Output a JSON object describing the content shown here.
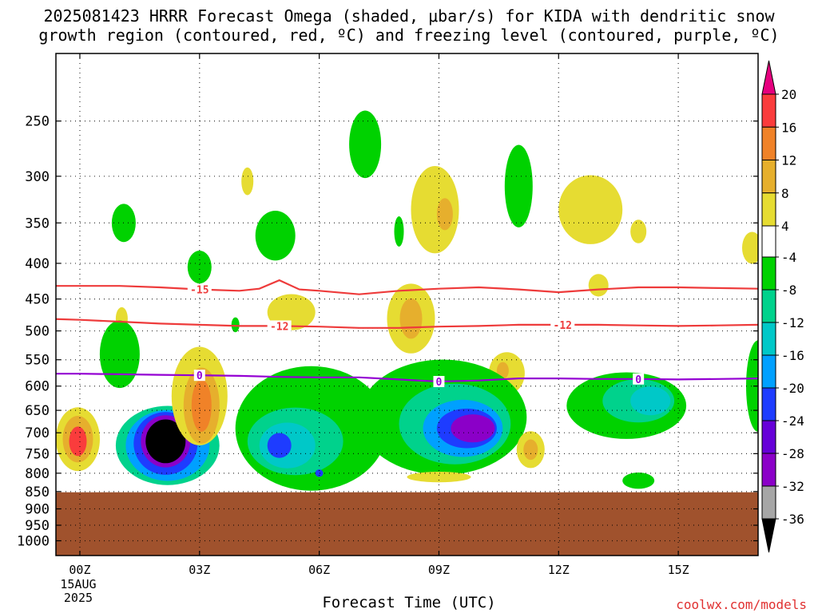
{
  "title_line1": "2025081423 HRRR Forecast Omega (shaded, μbar/s) for KIDA with dendritic snow",
  "title_line2": "growth region (contoured, red, ºC) and freezing level (contoured, purple, ºC)",
  "xlabel": "Forecast Time (UTC)",
  "credit": "coolwx.com/models",
  "chart_data": {
    "type": "heatmap",
    "y_axis": {
      "label": "",
      "unit": "hPa",
      "scale": "log",
      "inverted": true,
      "range": [
        1050,
        200
      ],
      "ticks": [
        250,
        300,
        350,
        400,
        450,
        500,
        550,
        600,
        650,
        700,
        750,
        800,
        850,
        900,
        950,
        1000
      ]
    },
    "x_axis": {
      "range_hours": [
        -0.6,
        17
      ],
      "ticks": [
        {
          "hour": 0,
          "label": "00Z",
          "sub1": "15AUG",
          "sub2": "2025"
        },
        {
          "hour": 3,
          "label": "03Z"
        },
        {
          "hour": 6,
          "label": "06Z"
        },
        {
          "hour": 9,
          "label": "09Z"
        },
        {
          "hour": 12,
          "label": "12Z"
        },
        {
          "hour": 15,
          "label": "15Z"
        }
      ]
    },
    "grid": true,
    "ground_level_hpa": 852,
    "ground_color": "#a0522d",
    "colorbar": {
      "levels": [
        -36,
        -32,
        -28,
        -24,
        -20,
        -16,
        -12,
        -8,
        -4,
        4,
        8,
        12,
        16,
        20
      ],
      "colors": [
        "#000000",
        "#a6a6a6",
        "#8b00c8",
        "#6600d8",
        "#1e3cff",
        "#00a0ff",
        "#00c8c8",
        "#00d28c",
        "#00d200",
        "#ffffff",
        "#e6dc32",
        "#e6af2d",
        "#f08228",
        "#fa3c3c",
        "#e6007f"
      ]
    },
    "omega_features": [
      {
        "x": 1.1,
        "p": 350,
        "rx": 0.3,
        "rp": 22,
        "value": -6
      },
      {
        "x": 4.2,
        "p": 305,
        "rx": 0.15,
        "rp": 14,
        "value": 5
      },
      {
        "x": 3.0,
        "p": 405,
        "rx": 0.3,
        "rp": 22,
        "value": -6
      },
      {
        "x": 4.9,
        "p": 365,
        "rx": 0.5,
        "rp": 30,
        "value": -6
      },
      {
        "x": 7.15,
        "p": 270,
        "rx": 0.4,
        "rp": 30,
        "value": -6
      },
      {
        "x": 8.9,
        "p": 335,
        "rx": 0.6,
        "rp": 48,
        "value": 6
      },
      {
        "x": 9.15,
        "p": 340,
        "rx": 0.2,
        "rp": 18,
        "value": 9
      },
      {
        "x": 8.0,
        "p": 360,
        "rx": 0.12,
        "rp": 18,
        "value": -6
      },
      {
        "x": 11.0,
        "p": 310,
        "rx": 0.35,
        "rp": 42,
        "value": -6
      },
      {
        "x": 12.8,
        "p": 335,
        "rx": 0.8,
        "rp": 38,
        "value": 6
      },
      {
        "x": 14.0,
        "p": 360,
        "rx": 0.2,
        "rp": 14,
        "value": 5
      },
      {
        "x": 13.0,
        "p": 430,
        "rx": 0.25,
        "rp": 16,
        "value": 5
      },
      {
        "x": 16.85,
        "p": 380,
        "rx": 0.25,
        "rp": 20,
        "value": 5
      },
      {
        "x": 1.05,
        "p": 480,
        "rx": 0.15,
        "rp": 18,
        "value": 5
      },
      {
        "x": 3.9,
        "p": 490,
        "rx": 0.1,
        "rp": 12,
        "value": -6
      },
      {
        "x": 5.3,
        "p": 470,
        "rx": 0.6,
        "rp": 28,
        "value": 5
      },
      {
        "x": 8.3,
        "p": 480,
        "rx": 0.6,
        "rp": 55,
        "value": 6
      },
      {
        "x": 8.3,
        "p": 480,
        "rx": 0.28,
        "rp": 32,
        "value": 10
      },
      {
        "x": 1.0,
        "p": 540,
        "rx": 0.5,
        "rp": 60,
        "value": -6
      },
      {
        "x": 10.7,
        "p": 575,
        "rx": 0.45,
        "rp": 40,
        "value": 6
      },
      {
        "x": 10.6,
        "p": 570,
        "rx": 0.15,
        "rp": 16,
        "value": 10
      },
      {
        "x": 2.2,
        "p": 730,
        "rx": 1.3,
        "rp": 95,
        "value": -10
      },
      {
        "x": 2.2,
        "p": 730,
        "rx": 1.05,
        "rp": 85,
        "value": -16
      },
      {
        "x": 2.15,
        "p": 725,
        "rx": 0.8,
        "rp": 75,
        "value": -22
      },
      {
        "x": 2.15,
        "p": 720,
        "rx": 0.62,
        "rp": 62,
        "value": -30
      },
      {
        "x": 2.15,
        "p": 720,
        "rx": 0.5,
        "rp": 52,
        "value": -40
      },
      {
        "x": 3.0,
        "p": 620,
        "rx": 0.7,
        "rp": 100,
        "value": 6
      },
      {
        "x": 3.05,
        "p": 640,
        "rx": 0.45,
        "rp": 80,
        "value": 10
      },
      {
        "x": 3.05,
        "p": 640,
        "rx": 0.25,
        "rp": 55,
        "value": 14
      },
      {
        "x": -0.05,
        "p": 715,
        "rx": 0.55,
        "rp": 75,
        "value": 6
      },
      {
        "x": -0.05,
        "p": 715,
        "rx": 0.38,
        "rp": 55,
        "value": 10
      },
      {
        "x": -0.05,
        "p": 720,
        "rx": 0.22,
        "rp": 35,
        "value": 18
      },
      {
        "x": 5.8,
        "p": 690,
        "rx": 1.9,
        "rp": 140,
        "value": -6
      },
      {
        "x": 5.4,
        "p": 720,
        "rx": 1.2,
        "rp": 80,
        "value": -10
      },
      {
        "x": 5.2,
        "p": 730,
        "rx": 0.7,
        "rp": 55,
        "value": -14
      },
      {
        "x": 5.0,
        "p": 730,
        "rx": 0.3,
        "rp": 30,
        "value": -20
      },
      {
        "x": 6.0,
        "p": 800,
        "rx": 0.1,
        "rp": 10,
        "value": -20
      },
      {
        "x": 9.1,
        "p": 665,
        "rx": 2.1,
        "rp": 125,
        "value": -6
      },
      {
        "x": 9.4,
        "p": 680,
        "rx": 1.4,
        "rp": 90,
        "value": -10
      },
      {
        "x": 9.6,
        "p": 690,
        "rx": 1.0,
        "rp": 65,
        "value": -16
      },
      {
        "x": 9.7,
        "p": 690,
        "rx": 0.75,
        "rp": 45,
        "value": -22
      },
      {
        "x": 9.85,
        "p": 690,
        "rx": 0.55,
        "rp": 32,
        "value": -28
      },
      {
        "x": 9.0,
        "p": 810,
        "rx": 0.8,
        "rp": 14,
        "value": 5
      },
      {
        "x": 11.3,
        "p": 740,
        "rx": 0.35,
        "rp": 45,
        "value": 6
      },
      {
        "x": 11.3,
        "p": 740,
        "rx": 0.18,
        "rp": 25,
        "value": 10
      },
      {
        "x": 13.7,
        "p": 640,
        "rx": 1.5,
        "rp": 70,
        "value": -6
      },
      {
        "x": 14.0,
        "p": 630,
        "rx": 0.9,
        "rp": 45,
        "value": -10
      },
      {
        "x": 14.3,
        "p": 630,
        "rx": 0.5,
        "rp": 30,
        "value": -12
      },
      {
        "x": 14.0,
        "p": 820,
        "rx": 0.4,
        "rp": 22,
        "value": -6
      },
      {
        "x": 17.0,
        "p": 600,
        "rx": 0.3,
        "rp": 90,
        "value": -6
      }
    ],
    "contours": [
      {
        "name": "",
        "label": "-15",
        "color": "#ee3b3b",
        "x": [
          -1,
          0,
          1,
          2,
          3,
          4,
          4.5,
          5,
          5.5,
          6,
          7,
          8,
          9,
          10,
          11,
          12,
          13,
          14,
          15,
          16,
          17,
          18
        ],
        "p": [
          431,
          431,
          431,
          433,
          436,
          438,
          435,
          423,
          436,
          438,
          443,
          438,
          435,
          433,
          436,
          440,
          436,
          433,
          433,
          434,
          435,
          435
        ],
        "label_at": [
          3.0
        ]
      },
      {
        "name": "",
        "label": "-12",
        "color": "#ee3b3b",
        "x": [
          -1,
          0,
          1,
          2,
          3,
          4,
          5,
          6,
          7,
          8,
          9,
          10,
          11,
          12,
          13,
          14,
          15,
          16,
          17,
          18
        ],
        "p": [
          480,
          482,
          485,
          488,
          490,
          492,
          492,
          493,
          495,
          495,
          493,
          492,
          490,
          490,
          490,
          491,
          492,
          491,
          490,
          491
        ],
        "label_at": [
          5.0,
          12.1
        ]
      },
      {
        "name": "",
        "label": "0",
        "color": "#9400d3",
        "x": [
          -1,
          0,
          1,
          2,
          3,
          4,
          5,
          6,
          7,
          8,
          9,
          10,
          11,
          12,
          13,
          14,
          15,
          16,
          17,
          18
        ],
        "p": [
          576,
          576,
          577,
          578,
          579,
          580,
          582,
          583,
          583,
          587,
          591,
          589,
          585,
          585,
          586,
          586,
          587,
          586,
          585,
          585
        ],
        "label_at": [
          3.0,
          9.0,
          14.0
        ]
      }
    ]
  }
}
